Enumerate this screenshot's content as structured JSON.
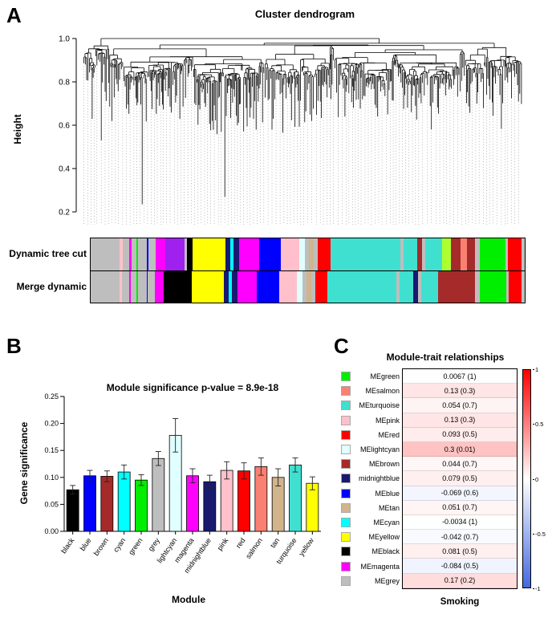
{
  "panels": {
    "a": "A",
    "b": "B",
    "c": "C"
  },
  "chart_data": [
    {
      "id": "cluster-dendrogram",
      "type": "dendrogram",
      "title": "Cluster dendrogram",
      "ylabel": "Height",
      "ylim": [
        0.15,
        1.0
      ],
      "yticks": [
        0.2,
        0.4,
        0.6,
        0.8,
        1.0
      ],
      "ytick_labels": [
        "0.2",
        "0.4",
        "0.6",
        "0.8",
        "1.0"
      ],
      "deep_leaves": [
        [
          0.04,
          0.53
        ],
        [
          0.065,
          0.62
        ],
        [
          0.134,
          0.235
        ],
        [
          0.3,
          0.62
        ],
        [
          0.32,
          0.57
        ],
        [
          0.33,
          0.27
        ],
        [
          0.36,
          0.6
        ],
        [
          0.4,
          0.63
        ],
        [
          0.44,
          0.58
        ],
        [
          0.53,
          0.62
        ],
        [
          0.62,
          0.68
        ],
        [
          0.68,
          0.64
        ],
        [
          0.76,
          0.66
        ],
        [
          0.9,
          0.7
        ],
        [
          0.93,
          0.72
        ]
      ],
      "bands": {
        "rows": [
          {
            "label": "Dynamic tree cut",
            "segments": [
              [
                "#BEBEBE",
                4.6
              ],
              [
                "#FFC0CB",
                0.4
              ],
              [
                "#BEBEBE",
                1.1
              ],
              [
                "#FF00FF",
                0.35
              ],
              [
                "#BEBEBE",
                0.8
              ],
              [
                "#00EE00",
                0.25
              ],
              [
                "#BEBEBE",
                1.4
              ],
              [
                "#0000FF",
                0.2
              ],
              [
                "#BEBEBE",
                1.1
              ],
              [
                "#FF00FF",
                1.5
              ],
              [
                "#A020F0",
                3.1
              ],
              [
                "#BEBEBE",
                0.4
              ],
              [
                "#000000",
                0.9
              ],
              [
                "#FFFF00",
                5.1
              ],
              [
                "#191970",
                0.8
              ],
              [
                "#00FFFF",
                0.5
              ],
              [
                "#191970",
                0.9
              ],
              [
                "#FF00FF",
                3.1
              ],
              [
                "#0000FF",
                3.5
              ],
              [
                "#FFC0CB",
                2.9
              ],
              [
                "#E0FFFF",
                0.9
              ],
              [
                "#BEBEBE",
                0.6
              ],
              [
                "#D2B48C",
                0.8
              ],
              [
                "#BEBEBE",
                0.6
              ],
              [
                "#FF0000",
                2.0
              ],
              [
                "#40E0D0",
                11.0
              ],
              [
                "#BEBEBE",
                0.5
              ],
              [
                "#40E0D0",
                2.1
              ],
              [
                "#A52A2A",
                0.8
              ],
              [
                "#BEBEBE",
                0.5
              ],
              [
                "#40E0D0",
                2.7
              ],
              [
                "#ADFF2F",
                1.4
              ],
              [
                "#A52A2A",
                1.5
              ],
              [
                "#FA8072",
                1.0
              ],
              [
                "#A52A2A",
                1.2
              ],
              [
                "#BEBEBE",
                0.8
              ],
              [
                "#00EE00",
                4.1
              ],
              [
                "#BEBEBE",
                0.4
              ],
              [
                "#FF0000",
                2.1
              ],
              [
                "#BEBEBE",
                0.5
              ]
            ]
          },
          {
            "label": "Merge dynamic",
            "segments": [
              [
                "#BEBEBE",
                4.6
              ],
              [
                "#FFC0CB",
                0.4
              ],
              [
                "#BEBEBE",
                1.1
              ],
              [
                "#FF00FF",
                0.35
              ],
              [
                "#BEBEBE",
                0.8
              ],
              [
                "#00EE00",
                0.25
              ],
              [
                "#BEBEBE",
                1.4
              ],
              [
                "#0000FF",
                0.2
              ],
              [
                "#BEBEBE",
                1.1
              ],
              [
                "#FF00FF",
                1.5
              ],
              [
                "#000000",
                4.4
              ],
              [
                "#FFFF00",
                5.1
              ],
              [
                "#191970",
                0.8
              ],
              [
                "#00FFFF",
                0.5
              ],
              [
                "#191970",
                0.9
              ],
              [
                "#FF00FF",
                3.1
              ],
              [
                "#0000FF",
                3.5
              ],
              [
                "#FFC0CB",
                2.9
              ],
              [
                "#E0FFFF",
                0.9
              ],
              [
                "#BEBEBE",
                0.6
              ],
              [
                "#D2B48C",
                0.8
              ],
              [
                "#BEBEBE",
                0.6
              ],
              [
                "#FF0000",
                2.0
              ],
              [
                "#40E0D0",
                11.0
              ],
              [
                "#BEBEBE",
                0.5
              ],
              [
                "#40E0D0",
                2.1
              ],
              [
                "#191970",
                0.8
              ],
              [
                "#BEBEBE",
                0.5
              ],
              [
                "#40E0D0",
                2.7
              ],
              [
                "#A52A2A",
                5.9
              ],
              [
                "#BEBEBE",
                0.8
              ],
              [
                "#00EE00",
                4.1
              ],
              [
                "#BEBEBE",
                0.4
              ],
              [
                "#FF0000",
                2.1
              ],
              [
                "#BEBEBE",
                0.5
              ]
            ]
          }
        ]
      }
    },
    {
      "id": "module-significance",
      "type": "bar",
      "title": "Module significance p-value = 8.9e-18",
      "xlabel": "Module",
      "ylabel": "Gene significance",
      "ylim": [
        0,
        0.25
      ],
      "yticks": [
        0,
        0.05,
        0.1,
        0.15,
        0.2,
        0.25
      ],
      "ytick_labels": [
        "0.00",
        "0.05",
        "0.10",
        "0.15",
        "0.20",
        "0.25"
      ],
      "categories": [
        "black",
        "blue",
        "brown",
        "cyan",
        "green",
        "grey",
        "lightcyan",
        "magenta",
        "midnightblue",
        "pink",
        "red",
        "salmon",
        "tan",
        "turquoise",
        "yellow"
      ],
      "values": [
        0.077,
        0.103,
        0.102,
        0.11,
        0.095,
        0.135,
        0.178,
        0.103,
        0.092,
        0.113,
        0.112,
        0.12,
        0.1,
        0.123,
        0.089
      ],
      "errors": [
        0.008,
        0.01,
        0.01,
        0.013,
        0.01,
        0.013,
        0.031,
        0.013,
        0.012,
        0.016,
        0.015,
        0.016,
        0.016,
        0.013,
        0.012
      ],
      "bar_colors": [
        "#000000",
        "#0000FF",
        "#A52A2A",
        "#00FFFF",
        "#00EE00",
        "#BEBEBE",
        "#E0FFFF",
        "#FF00FF",
        "#191970",
        "#FFC0CB",
        "#FF0000",
        "#FA8072",
        "#D2B48C",
        "#40E0D0",
        "#FFFF00"
      ]
    },
    {
      "id": "module-trait-relationships",
      "type": "heatmap",
      "title": "Module-trait relationships",
      "columns": [
        "Smoking"
      ],
      "rows": [
        {
          "label": "MEgreen",
          "swatch": "#00EE00",
          "value": 0.0067,
          "text": "0.0067 (1)"
        },
        {
          "label": "MEsalmon",
          "swatch": "#FA8072",
          "value": 0.13,
          "text": "0.13 (0.3)"
        },
        {
          "label": "MEturquoise",
          "swatch": "#40E0D0",
          "value": 0.054,
          "text": "0.054 (0.7)"
        },
        {
          "label": "MEpink",
          "swatch": "#FFC0CB",
          "value": 0.13,
          "text": "0.13 (0.3)"
        },
        {
          "label": "MEred",
          "swatch": "#FF0000",
          "value": 0.093,
          "text": "0.093 (0.5)"
        },
        {
          "label": "MElightcyan",
          "swatch": "#E0FFFF",
          "value": 0.3,
          "text": "0.3 (0.01)"
        },
        {
          "label": "MEbrown",
          "swatch": "#A52A2A",
          "value": 0.044,
          "text": "0.044 (0.7)"
        },
        {
          "label": "midnightblue",
          "swatch": "#191970",
          "value": 0.079,
          "text": "0.079 (0.5)"
        },
        {
          "label": "MEblue",
          "swatch": "#0000FF",
          "value": -0.069,
          "text": "-0.069 (0.6)"
        },
        {
          "label": "MEtan",
          "swatch": "#D2B48C",
          "value": 0.051,
          "text": "0.051 (0.7)"
        },
        {
          "label": "MEcyan",
          "swatch": "#00FFFF",
          "value": -0.0034,
          "text": "-0.0034 (1)"
        },
        {
          "label": "MEyellow",
          "swatch": "#FFFF00",
          "value": -0.042,
          "text": "-0.042 (0.7)"
        },
        {
          "label": "MEblack",
          "swatch": "#000000",
          "value": 0.081,
          "text": "0.081 (0.5)"
        },
        {
          "label": "MEmagenta",
          "swatch": "#FF00FF",
          "value": -0.084,
          "text": "-0.084 (0.5)"
        },
        {
          "label": "MEgrey",
          "swatch": "#BEBEBE",
          "value": 0.17,
          "text": "0.17 (0.2)"
        }
      ],
      "colorbar": {
        "ticks": [
          "1",
          "0.5",
          "0",
          "-0.5",
          "-1"
        ],
        "max_color": "#FF0000",
        "mid_color": "#FFFFFF",
        "min_color": "#4169E1"
      }
    }
  ]
}
